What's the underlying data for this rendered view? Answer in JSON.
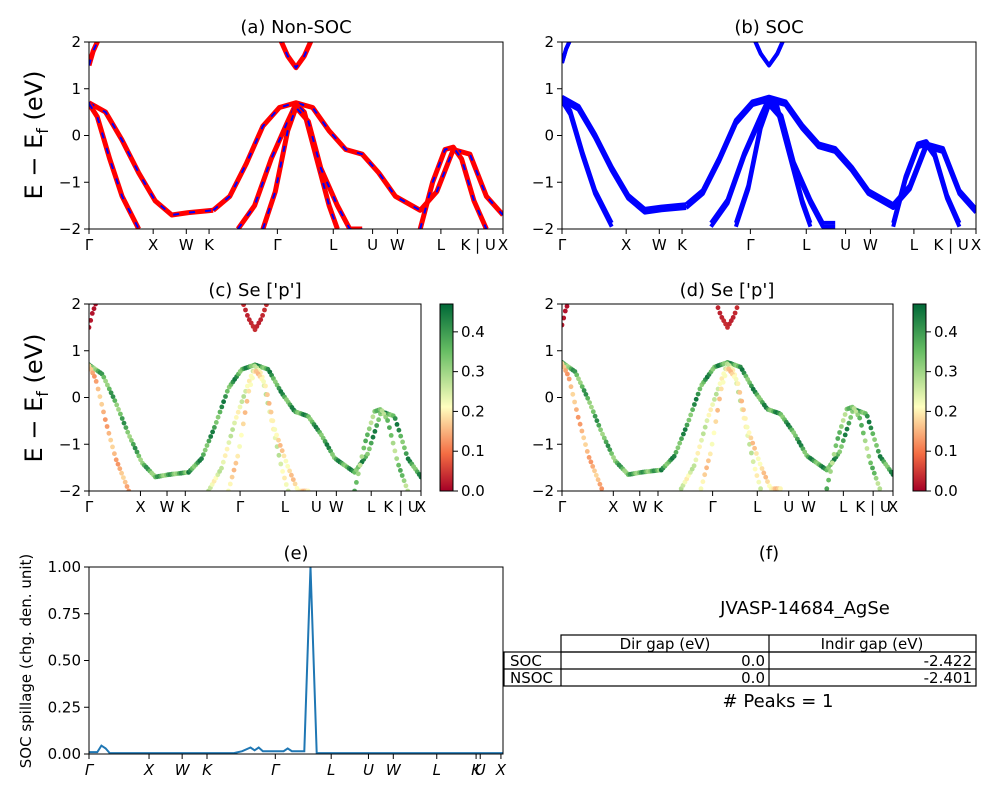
{
  "colors": {
    "nonsoc_line": "#ff0000",
    "nonsoc_dash": "#0000ff",
    "soc_line": "#0000ff",
    "spill_line": "#1f77b4",
    "cmap_low": "#a50026",
    "cmap_mid": "#ffffbf",
    "cmap_high": "#006837"
  },
  "chart_data": [
    {
      "id": "a",
      "type": "line",
      "title": "(a) Non-SOC",
      "ylabel": "E − E_f (eV)",
      "ylabel_main": "E − E",
      "ylabel_sub": "f",
      "ylabel_unit": "(eV)",
      "ylim": [
        -2,
        2
      ],
      "yticks": [
        "−2",
        "−1",
        "0",
        "1",
        "2"
      ],
      "kpath": [
        "Γ",
        "X",
        "W",
        "K",
        "Γ",
        "L",
        "U",
        "W",
        "L",
        "K | U",
        "X"
      ],
      "series": [
        {
          "x": [
            0,
            0.04,
            0.08,
            0.12,
            0.16,
            0.2,
            0.24,
            0.3
          ],
          "y": [
            0.7,
            0.5,
            -0.1,
            -0.8,
            -1.4,
            -1.7,
            -1.65,
            -1.6
          ]
        },
        {
          "x": [
            0,
            0.02,
            0.05,
            0.08,
            0.12
          ],
          "y": [
            0.68,
            0.4,
            -0.5,
            -1.3,
            -2
          ]
        },
        {
          "x": [
            0.3,
            0.34,
            0.38,
            0.42,
            0.46,
            0.5,
            0.54,
            0.58,
            0.62,
            0.66,
            0.7,
            0.74,
            0.8,
            0.84,
            0.88,
            0.92,
            0.96,
            1.0
          ],
          "y": [
            -1.6,
            -1.3,
            -0.6,
            0.2,
            0.6,
            0.7,
            0.6,
            0.1,
            -0.3,
            -0.4,
            -0.8,
            -1.3,
            -1.6,
            -1.2,
            -0.3,
            -0.4,
            -1.3,
            -1.7
          ]
        },
        {
          "x": [
            0.36,
            0.4,
            0.44,
            0.48,
            0.5,
            0.52,
            0.55,
            0.58,
            0.6
          ],
          "y": [
            -2,
            -1.5,
            -0.5,
            0.3,
            0.68,
            0.5,
            -0.5,
            -1.5,
            -2
          ]
        },
        {
          "x": [
            0.42,
            0.45,
            0.48,
            0.5,
            0.53,
            0.56,
            0.6,
            0.63,
            0.66
          ],
          "y": [
            -2,
            -1.2,
            0.1,
            0.6,
            0.3,
            -0.7,
            -1.5,
            -2,
            -2
          ]
        },
        {
          "x": [
            0.8,
            0.83,
            0.86,
            0.88,
            0.9,
            0.93,
            0.96
          ],
          "y": [
            -2,
            -1,
            -0.3,
            -0.25,
            -0.5,
            -1.4,
            -2
          ]
        },
        {
          "x": [
            0,
            0.01,
            0.02,
            0.025
          ],
          "y": [
            1.5,
            1.8,
            2.0,
            2.1
          ]
        },
        {
          "x": [
            0.46,
            0.48,
            0.5,
            0.52,
            0.54
          ],
          "y": [
            2.1,
            1.7,
            1.45,
            1.7,
            2.1
          ]
        }
      ]
    },
    {
      "id": "b",
      "type": "line",
      "title": "(b) SOC",
      "ylim": [
        -2,
        2
      ],
      "yticks": [
        "−2",
        "−1",
        "0",
        "1",
        "2"
      ],
      "kpath": [
        "Γ",
        "X",
        "W",
        "K",
        "Γ",
        "L",
        "U",
        "W",
        "L",
        "K | U",
        "X"
      ]
    },
    {
      "id": "c",
      "type": "scatter",
      "title": "(c)  Se ['p']",
      "ylabel": "E − E_f (eV)",
      "ylim": [
        -2,
        2
      ],
      "yticks": [
        "−2",
        "−1",
        "0",
        "1",
        "2"
      ],
      "kpath": [
        "Γ",
        "X",
        "W",
        "K",
        "Γ",
        "L",
        "U",
        "W",
        "L",
        "K | U",
        "X"
      ],
      "colorbar": {
        "min": 0.0,
        "max": 0.47,
        "ticks": [
          "0.0",
          "0.1",
          "0.2",
          "0.3",
          "0.4"
        ]
      }
    },
    {
      "id": "d",
      "type": "scatter",
      "title": "(d) Se ['p']",
      "ylim": [
        -2,
        2
      ],
      "yticks": [
        "−2",
        "−1",
        "0",
        "1",
        "2"
      ],
      "kpath": [
        "Γ",
        "X",
        "W",
        "K",
        "Γ",
        "L",
        "U",
        "W",
        "L",
        "K | U",
        "X"
      ],
      "colorbar": {
        "min": 0.0,
        "max": 0.47,
        "ticks": [
          "0.0",
          "0.1",
          "0.2",
          "0.3",
          "0.4"
        ]
      }
    },
    {
      "id": "e",
      "type": "line",
      "title": "(e)",
      "ylabel": "SOC spillage (chg. den. unit)",
      "ylim": [
        0,
        1.0
      ],
      "yticks": [
        "0.00",
        "0.25",
        "0.50",
        "0.75",
        "1.00"
      ],
      "kpath": [
        "Γ",
        "X",
        "W",
        "K",
        "Γ",
        "L",
        "U",
        "W",
        "L",
        "K",
        "U",
        "X"
      ],
      "x": [
        0,
        0.02,
        0.03,
        0.04,
        0.05,
        0.08,
        0.2,
        0.35,
        0.37,
        0.39,
        0.4,
        0.41,
        0.42,
        0.44,
        0.47,
        0.48,
        0.49,
        0.52,
        0.535,
        0.55,
        0.555,
        0.6,
        0.8,
        1.0
      ],
      "y": [
        0.01,
        0.01,
        0.045,
        0.03,
        0.005,
        0.005,
        0.005,
        0.005,
        0.015,
        0.035,
        0.02,
        0.035,
        0.015,
        0.015,
        0.015,
        0.03,
        0.015,
        0.015,
        1.0,
        0.005,
        0.005,
        0.005,
        0.005,
        0.005
      ]
    },
    {
      "id": "f",
      "type": "table",
      "title": "(f)",
      "subtitle": "JVASP-14684_AgSe",
      "columns": [
        "",
        "Dir gap (eV)",
        "Indir gap (eV)"
      ],
      "rows": [
        [
          "SOC",
          "0.0",
          "-2.422"
        ],
        [
          "NSOC",
          "0.0",
          "-2.401"
        ]
      ],
      "note": "# Peaks = 1"
    }
  ]
}
